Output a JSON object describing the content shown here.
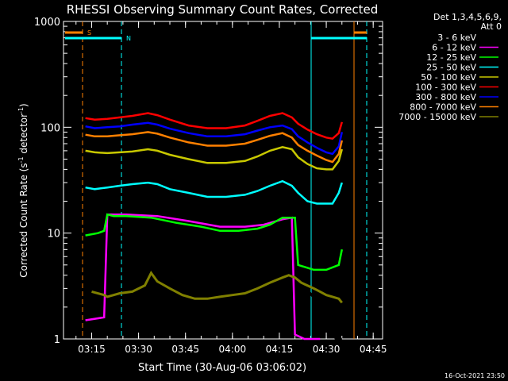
{
  "chart_data": {
    "type": "line",
    "title": "RHESSI Observing Summary Count Rates, Corrected",
    "xlabel": "Start Time (30-Aug-06 03:06:02)",
    "ylabel_main": "Corrected Count Rate (s",
    "ylabel_sup1": "-1",
    "ylabel_mid": " detector",
    "ylabel_sup2": "-1",
    "ylabel_end": ")",
    "y_scale": "log",
    "ylim": [
      1,
      1000
    ],
    "xlim_minutes": [
      0,
      102
    ],
    "x_ticks": [
      {
        "label": "03:15",
        "min": 9
      },
      {
        "label": "03:30",
        "min": 24
      },
      {
        "label": "03:45",
        "min": 39
      },
      {
        "label": "04:00",
        "min": 54
      },
      {
        "label": "04:15",
        "min": 69
      },
      {
        "label": "04:30",
        "min": 84
      },
      {
        "label": "04:45",
        "min": 99
      }
    ],
    "y_ticks": [
      {
        "label": "1",
        "value": 1
      },
      {
        "label": "10",
        "value": 10
      },
      {
        "label": "100",
        "value": 100
      },
      {
        "label": "1000",
        "value": 1000
      }
    ],
    "legend_header_1": "Det 1,3,4,5,6,9,",
    "legend_header_2": "Att 0",
    "legend_position": "right",
    "series": [
      {
        "name": "3 - 6 keV",
        "color": "#000000",
        "x": [
          9,
          22,
          24,
          30,
          40,
          48,
          56,
          62,
          68,
          72,
          74,
          78,
          80,
          82,
          84,
          86,
          87,
          89
        ],
        "y": [
          1.5,
          1.5,
          1.6,
          2.3,
          2.4,
          1.5,
          1.4,
          1.5,
          2.0,
          2.5,
          3.0,
          3.0,
          2.4,
          1.8,
          1.3,
          1.2,
          1.0,
          1.0
        ]
      },
      {
        "name": "6 - 12 keV",
        "color": "#ff00ff",
        "x": [
          7,
          13,
          14,
          20,
          30,
          40,
          50,
          58,
          64,
          70,
          73,
          74,
          77,
          80,
          82
        ],
        "y": [
          1.5,
          1.6,
          15,
          15,
          14.5,
          13,
          11.5,
          11.5,
          12,
          13.5,
          14,
          1.1,
          1.0,
          1.0,
          1.0
        ]
      },
      {
        "name": "12 - 25 keV",
        "color": "#00ff00",
        "x": [
          7,
          11,
          13,
          14,
          16,
          20,
          28,
          36,
          44,
          50,
          56,
          62,
          66,
          70,
          74,
          75,
          80,
          84,
          88,
          89
        ],
        "y": [
          9.5,
          10,
          10.5,
          15,
          14.5,
          14.5,
          14,
          12.5,
          11.5,
          10.5,
          10.5,
          11,
          12,
          14,
          14,
          5,
          4.5,
          4.5,
          5,
          7
        ]
      },
      {
        "name": "25 - 50 keV",
        "color": "#00ffff",
        "x": [
          7,
          10,
          14,
          18,
          22,
          27,
          30,
          34,
          40,
          46,
          52,
          58,
          62,
          66,
          70,
          73,
          75,
          78,
          81,
          84,
          86,
          88,
          89
        ],
        "y": [
          27,
          26,
          27,
          28,
          29,
          30,
          29,
          26,
          24,
          22,
          22,
          23,
          25,
          28,
          31,
          28,
          24,
          20,
          19,
          19,
          19,
          24,
          30
        ]
      },
      {
        "name": "50 - 100 keV",
        "color": "#c8c800",
        "x": [
          7,
          10,
          14,
          18,
          22,
          27,
          30,
          34,
          40,
          46,
          52,
          58,
          62,
          66,
          70,
          73,
          75,
          78,
          81,
          84,
          86,
          88,
          89
        ],
        "y": [
          60,
          58,
          57,
          58,
          59,
          62,
          60,
          55,
          50,
          46,
          46,
          48,
          53,
          60,
          65,
          62,
          52,
          45,
          41,
          40,
          40,
          48,
          62
        ]
      },
      {
        "name": "100 - 300 keV",
        "color": "#ff0000",
        "x": [
          7,
          10,
          14,
          18,
          22,
          27,
          30,
          34,
          40,
          46,
          52,
          58,
          62,
          66,
          70,
          73,
          75,
          78,
          81,
          84,
          86,
          88,
          89
        ],
        "y": [
          122,
          118,
          120,
          124,
          128,
          136,
          130,
          118,
          104,
          98,
          98,
          104,
          115,
          128,
          136,
          124,
          108,
          95,
          86,
          80,
          78,
          88,
          112
        ]
      },
      {
        "name": "300 - 800 keV",
        "color": "#0000ff",
        "x": [
          7,
          10,
          14,
          18,
          22,
          27,
          30,
          34,
          40,
          46,
          52,
          58,
          62,
          66,
          70,
          73,
          75,
          78,
          81,
          84,
          86,
          88,
          89
        ],
        "y": [
          102,
          98,
          100,
          102,
          106,
          110,
          106,
          97,
          88,
          82,
          82,
          86,
          93,
          100,
          104,
          96,
          82,
          72,
          64,
          58,
          56,
          66,
          90
        ]
      },
      {
        "name": "800 - 7000 keV",
        "color": "#ff8000",
        "x": [
          7,
          10,
          14,
          18,
          22,
          27,
          30,
          34,
          40,
          46,
          52,
          58,
          62,
          66,
          70,
          73,
          75,
          78,
          81,
          84,
          86,
          88,
          89
        ],
        "y": [
          85,
          82,
          82,
          84,
          86,
          90,
          87,
          80,
          72,
          67,
          67,
          70,
          76,
          83,
          88,
          80,
          68,
          60,
          54,
          49,
          47,
          56,
          75
        ]
      },
      {
        "name": "7000 - 15000 keV",
        "color": "#808000",
        "x": [
          9,
          13,
          14,
          18,
          22,
          26,
          28,
          30,
          34,
          38,
          42,
          46,
          50,
          54,
          58,
          62,
          66,
          70,
          72,
          74,
          76,
          80,
          82,
          84,
          86,
          88,
          89
        ],
        "y": [
          2.8,
          2.6,
          2.5,
          2.7,
          2.8,
          3.2,
          4.2,
          3.5,
          3.0,
          2.6,
          2.4,
          2.4,
          2.5,
          2.6,
          2.7,
          3.0,
          3.4,
          3.8,
          4.0,
          3.8,
          3.4,
          3.0,
          2.8,
          2.6,
          2.5,
          2.4,
          2.2
        ]
      }
    ],
    "annotations": [
      {
        "label": "S",
        "color": "#ff8000"
      },
      {
        "label": "N",
        "color": "#00ffff"
      }
    ],
    "grid": false
  },
  "timestamp": "16-Oct-2021 23:50"
}
